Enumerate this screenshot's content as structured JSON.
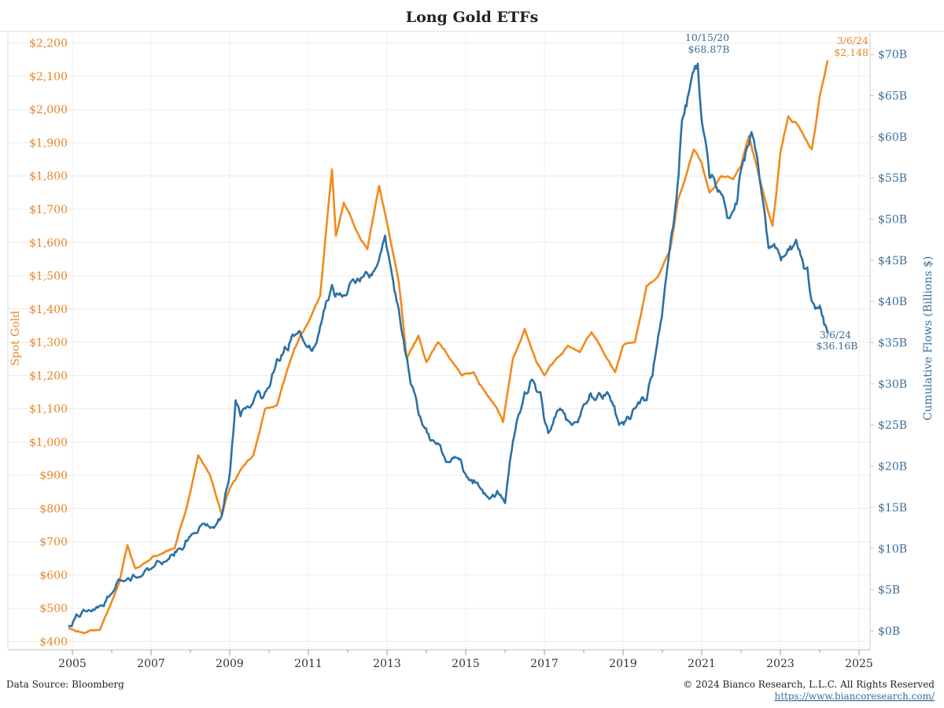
{
  "chart_data": {
    "type": "line",
    "title": "Long Gold ETFs",
    "xlabel": "",
    "x_ticks": [
      "2005",
      "2007",
      "2009",
      "2011",
      "2013",
      "2015",
      "2017",
      "2019",
      "2021",
      "2023",
      "2025"
    ],
    "xlim": [
      2004.0,
      2025.3
    ],
    "y_left": {
      "label": "Spot Gold",
      "ylim": [
        375,
        2230
      ],
      "ticks": [
        "$400",
        "$500",
        "$600",
        "$700",
        "$800",
        "$900",
        "$1,000",
        "$1,100",
        "$1,200",
        "$1,300",
        "$1,400",
        "$1,500",
        "$1,600",
        "$1,700",
        "$1,800",
        "$1,900",
        "$2,000",
        "$2,100",
        "$2,200"
      ],
      "tick_values": [
        400,
        500,
        600,
        700,
        800,
        900,
        1000,
        1100,
        1200,
        1300,
        1400,
        1500,
        1600,
        1700,
        1800,
        1900,
        2000,
        2100,
        2200
      ],
      "color": "#e8862a"
    },
    "y_right": {
      "label": "Cumulative Flows (Billions $)",
      "ylim": [
        -2.3,
        72.6
      ],
      "ticks": [
        "$0B",
        "$5B",
        "$10B",
        "$15B",
        "$20B",
        "$25B",
        "$30B",
        "$35B",
        "$40B",
        "$45B",
        "$50B",
        "$55B",
        "$60B",
        "$65B",
        "$70B"
      ],
      "tick_values": [
        0,
        5,
        10,
        15,
        20,
        25,
        30,
        35,
        40,
        45,
        50,
        55,
        60,
        65,
        70
      ],
      "color": "#3b6e99"
    },
    "grid": true,
    "series": [
      {
        "axis": "left",
        "color": "#f28a1d",
        "x": [
          2004.9,
          2005.3,
          2005.7,
          2006.0,
          2006.2,
          2006.4,
          2006.6,
          2006.9,
          2007.2,
          2007.6,
          2007.9,
          2008.2,
          2008.5,
          2008.8,
          2009.0,
          2009.3,
          2009.6,
          2009.9,
          2010.2,
          2010.5,
          2010.8,
          2011.0,
          2011.3,
          2011.6,
          2011.7,
          2011.9,
          2012.2,
          2012.5,
          2012.8,
          2013.0,
          2013.3,
          2013.5,
          2013.8,
          2014.0,
          2014.3,
          2014.6,
          2014.9,
          2015.2,
          2015.5,
          2015.8,
          2015.95,
          2016.2,
          2016.5,
          2016.8,
          2017.0,
          2017.3,
          2017.6,
          2017.9,
          2018.2,
          2018.5,
          2018.8,
          2019.0,
          2019.3,
          2019.6,
          2019.9,
          2020.2,
          2020.4,
          2020.6,
          2020.8,
          2021.0,
          2021.2,
          2021.5,
          2021.8,
          2022.0,
          2022.2,
          2022.5,
          2022.8,
          2023.0,
          2023.2,
          2023.4,
          2023.6,
          2023.8,
          2024.0,
          2024.2
        ],
        "values": [
          440,
          425,
          435,
          520,
          580,
          690,
          620,
          640,
          660,
          680,
          800,
          960,
          900,
          780,
          860,
          920,
          960,
          1100,
          1110,
          1230,
          1320,
          1360,
          1440,
          1820,
          1620,
          1720,
          1640,
          1580,
          1770,
          1660,
          1480,
          1250,
          1320,
          1240,
          1300,
          1250,
          1200,
          1210,
          1150,
          1100,
          1060,
          1250,
          1340,
          1240,
          1200,
          1250,
          1290,
          1270,
          1330,
          1270,
          1210,
          1290,
          1300,
          1470,
          1500,
          1580,
          1730,
          1800,
          1880,
          1840,
          1750,
          1800,
          1790,
          1830,
          1920,
          1780,
          1650,
          1870,
          1980,
          1960,
          1920,
          1880,
          2040,
          2148
        ]
      },
      {
        "axis": "right",
        "color": "#2b71a6",
        "x": [
          2004.9,
          2005.1,
          2005.4,
          2005.8,
          2006.0,
          2006.3,
          2006.7,
          2007.0,
          2007.4,
          2007.7,
          2008.0,
          2008.3,
          2008.6,
          2008.8,
          2009.0,
          2009.15,
          2009.4,
          2009.7,
          2009.9,
          2010.2,
          2010.4,
          2010.6,
          2010.9,
          2011.1,
          2011.3,
          2011.6,
          2011.8,
          2012.1,
          2012.4,
          2012.7,
          2012.95,
          2013.1,
          2013.3,
          2013.6,
          2013.9,
          2014.2,
          2014.5,
          2014.8,
          2015.0,
          2015.3,
          2015.6,
          2015.8,
          2016.0,
          2016.2,
          2016.5,
          2016.7,
          2016.9,
          2017.1,
          2017.4,
          2017.7,
          2018.0,
          2018.3,
          2018.6,
          2018.9,
          2019.1,
          2019.3,
          2019.6,
          2019.9,
          2020.1,
          2020.3,
          2020.5,
          2020.7,
          2020.8,
          2020.9,
          2021.0,
          2021.2,
          2021.5,
          2021.8,
          2022.0,
          2022.2,
          2022.3,
          2022.5,
          2022.7,
          2022.9,
          2023.1,
          2023.4,
          2023.6,
          2023.8,
          2024.0,
          2024.2
        ],
        "values": [
          0.5,
          2.0,
          2.5,
          3.0,
          4.5,
          6.0,
          6.5,
          7.5,
          8.5,
          10.0,
          11.5,
          13.0,
          12.5,
          14.0,
          19.0,
          28.0,
          27.0,
          29.0,
          29.0,
          33.0,
          34.5,
          36.0,
          35.0,
          34.0,
          37.0,
          42.0,
          41.0,
          42.5,
          43.0,
          44.0,
          48.0,
          44.0,
          39.0,
          30.0,
          25.0,
          23.0,
          20.5,
          21.0,
          19.0,
          18.0,
          16.0,
          17.0,
          15.5,
          23.0,
          29.0,
          30.5,
          29.0,
          24.0,
          27.0,
          25.0,
          27.5,
          28.0,
          29.0,
          25.0,
          26.0,
          27.0,
          28.0,
          36.0,
          43.0,
          50.0,
          62.0,
          66.0,
          68.0,
          68.87,
          62.0,
          55.0,
          53.0,
          51.0,
          56.0,
          59.0,
          60.0,
          54.0,
          46.5,
          46.5,
          45.5,
          47.5,
          44.0,
          40.0,
          39.5,
          36.16
        ]
      }
    ],
    "annotations": [
      {
        "date": "10/15/20",
        "value": "$68.87B",
        "series": "right"
      },
      {
        "date": "3/6/24",
        "value": "$2,148",
        "series": "left"
      },
      {
        "date": "3/6/24",
        "value": "$36.16B",
        "series": "right"
      }
    ]
  },
  "footer": {
    "source": "Data Source: Bloomberg",
    "copyright": "© 2024  Bianco Research, L.L.C. All Rights Reserved",
    "url": "https://www.biancoresearch.com/"
  }
}
